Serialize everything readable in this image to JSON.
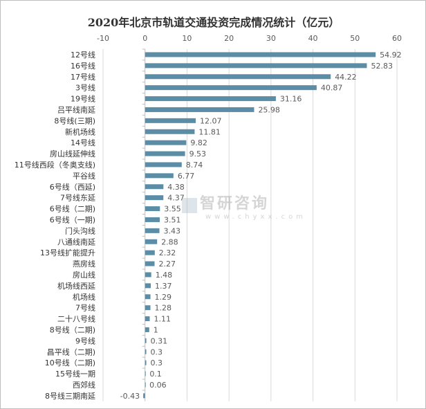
{
  "chart_data": {
    "type": "bar",
    "orientation": "horizontal",
    "title": "2020年北京市轨道交通投资完成情况统计（亿元）",
    "xlim": [
      -10,
      60
    ],
    "xticks": [
      -10,
      0,
      10,
      20,
      30,
      40,
      50,
      60
    ],
    "axis_position": "top",
    "grid": true,
    "bar_color": "#5b8ea6",
    "categories": [
      "12号线",
      "16号线",
      "17号线",
      "3号线",
      "19号线",
      "吕平线南延",
      "8号线(三期)",
      "新机场线",
      "14号线",
      "房山线延伸线",
      "11号线西段（冬奥支线)",
      "平谷线",
      "6号线（西延)",
      "7号线东延",
      "6号线（二期)",
      "6号线（一期)",
      "门头沟线",
      "八通线南延",
      "13号线扩能提升",
      "燕房线",
      "房山线",
      "机场线西延",
      "机场线",
      "7号线",
      "二十八号线",
      "8号线（二期)",
      "9号线",
      "昌平线（二期)",
      "10号线（二期)",
      "15号线一期",
      "西郊线",
      "8号线三期南延"
    ],
    "values": [
      54.92,
      52.83,
      44.22,
      40.87,
      31.16,
      25.98,
      12.07,
      11.81,
      9.82,
      9.53,
      8.74,
      6.77,
      4.38,
      4.37,
      3.55,
      3.51,
      3.43,
      2.88,
      2.32,
      2.27,
      1.48,
      1.37,
      1.29,
      1.28,
      1.11,
      1,
      0.31,
      0.3,
      0.3,
      0.1,
      0.06,
      -0.43
    ]
  },
  "watermark": {
    "name": "智研咨询",
    "url": "www.chyxx.com"
  }
}
